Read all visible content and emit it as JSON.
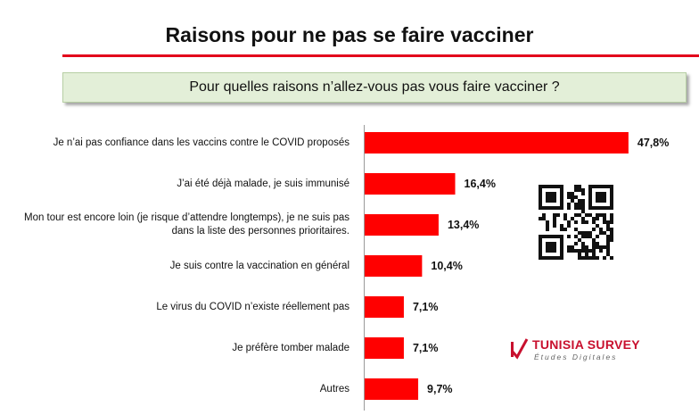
{
  "title": "Raisons pour ne pas se faire vacciner",
  "question": "Pour quelles raisons n’allez-vous pas vous faire vacciner ?",
  "brand": {
    "name": "TUNISIA SURVEY",
    "subtitle": "Études Digitales"
  },
  "colors": {
    "bar": "#ff0000",
    "accent_rule": "#e3001b",
    "question_bg": "#e3efd8"
  },
  "icons": [
    "qr-code-icon",
    "checkmark-logo-icon"
  ],
  "chart_data": {
    "type": "bar",
    "orientation": "horizontal",
    "title": "Raisons pour ne pas se faire vacciner",
    "subtitle": "Pour quelles raisons n’allez-vous pas vous faire vacciner ?",
    "categories": [
      "Je n’ai pas confiance dans les vaccins contre le COVID proposés",
      "J’ai été déjà malade, je suis immunisé",
      "Mon tour est encore loin (je risque d’attendre longtemps), je ne suis pas dans la liste des personnes prioritaires.",
      "Je suis contre la vaccination en général",
      "Le virus du COVID n’existe réellement pas",
      "Je préfère tomber malade",
      "Autres"
    ],
    "values": [
      47.8,
      16.4,
      13.4,
      10.4,
      7.1,
      7.1,
      9.7
    ],
    "value_labels": [
      "47,8%",
      "16,4%",
      "13,4%",
      "10,4%",
      "7,1%",
      "7,1%",
      "9,7%"
    ],
    "unit": "%",
    "xlim": [
      0,
      50
    ],
    "grid": false,
    "legend": "none"
  }
}
